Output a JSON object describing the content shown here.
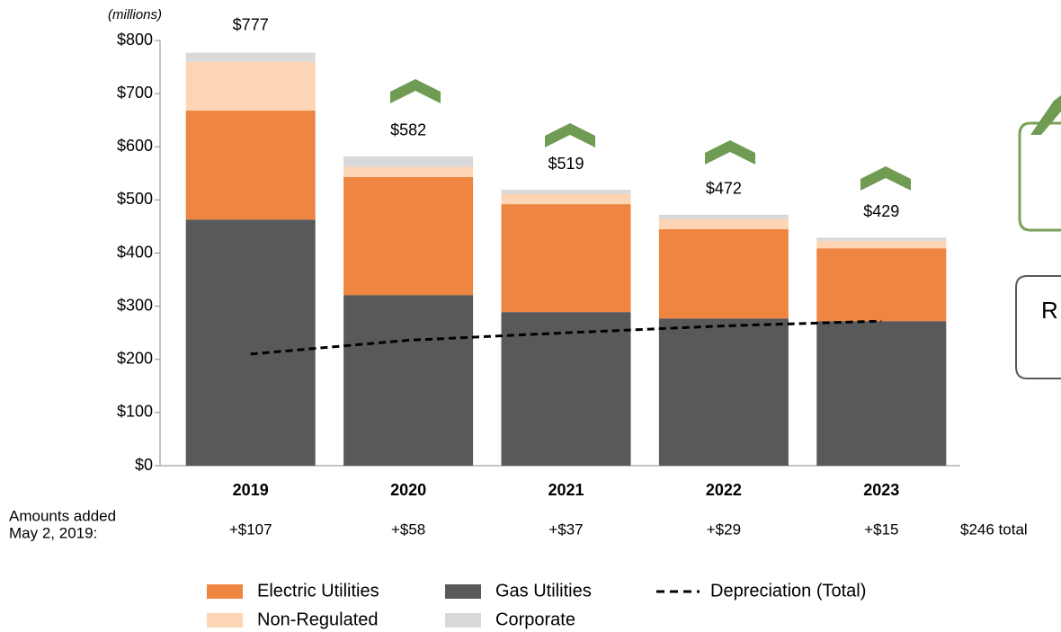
{
  "chart_data": {
    "type": "stacked_bar_line",
    "y_unit_label": "(millions)",
    "categories": [
      "2019",
      "2020",
      "2021",
      "2022",
      "2023"
    ],
    "series": [
      {
        "name": "Gas Utilities",
        "color": "#595959",
        "values": [
          463,
          321,
          289,
          277,
          272
        ]
      },
      {
        "name": "Electric Utilities",
        "color": "#ee8641",
        "values": [
          205,
          222,
          203,
          168,
          137
        ]
      },
      {
        "name": "Non-Regulated",
        "color": "#fdd5b4",
        "values": [
          92,
          19,
          19,
          19,
          14
        ]
      },
      {
        "name": "Corporate",
        "color": "#d9d9d9",
        "values": [
          17,
          20,
          8,
          8,
          6
        ]
      },
      {
        "name": "Depreciation (Total)",
        "color": "#000000",
        "type": "line",
        "values": [
          210,
          236,
          250,
          263,
          272
        ]
      }
    ],
    "total_labels": [
      "$777",
      "$582",
      "$519",
      "$472",
      "$429"
    ],
    "ylim": [
      0,
      800
    ],
    "yticks": [
      {
        "value": 0,
        "label": "$0"
      },
      {
        "value": 100,
        "label": "$100"
      },
      {
        "value": 200,
        "label": "$200"
      },
      {
        "value": 300,
        "label": "$300"
      },
      {
        "value": 400,
        "label": "$400"
      },
      {
        "value": 500,
        "label": "$500"
      },
      {
        "value": 600,
        "label": "$600"
      },
      {
        "value": 700,
        "label": "$700"
      },
      {
        "value": 800,
        "label": "$800"
      }
    ],
    "added_row_label": [
      "Amounts added",
      "May 2, 2019:"
    ],
    "added_values": [
      "+$107",
      "+$58",
      "+$37",
      "+$29",
      "+$15"
    ],
    "added_total": "$246 total",
    "side_box_text": "R"
  }
}
